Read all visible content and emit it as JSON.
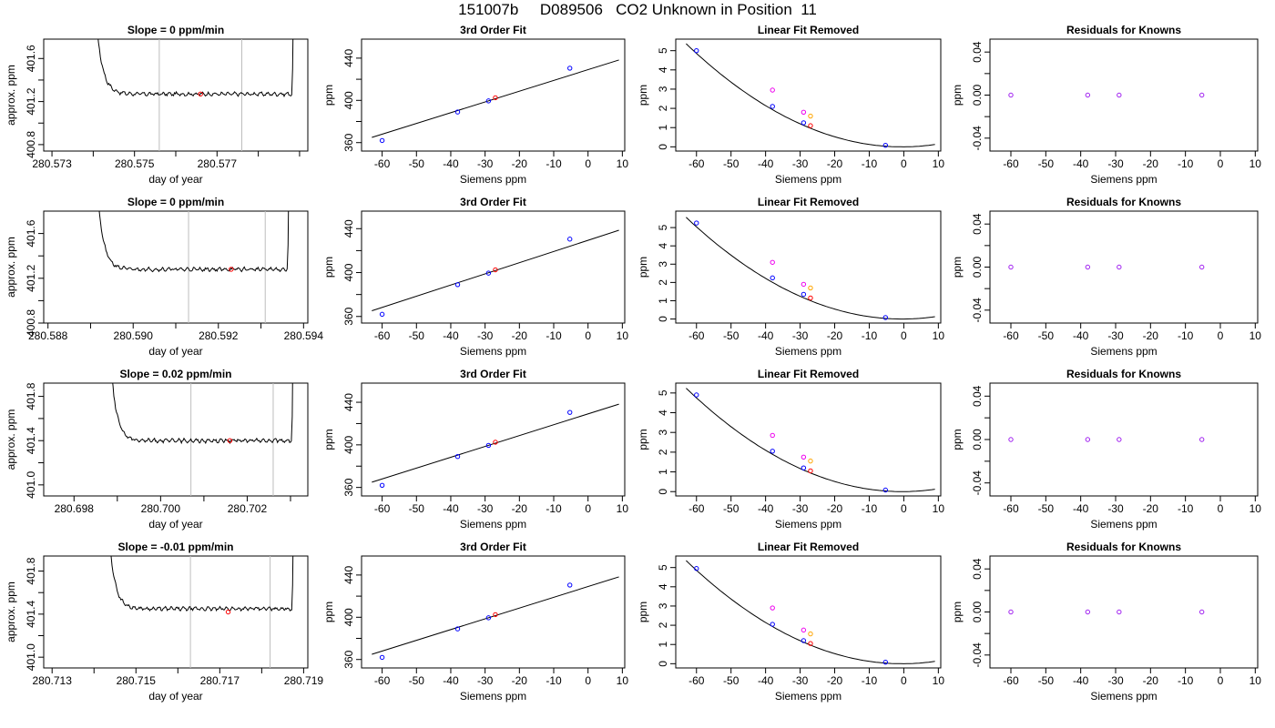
{
  "page_title": "151007b     D089506   CO2 Unknown in Position  11",
  "colors": {
    "trace": "#000000",
    "window_lines": "#bebebe",
    "sample_point": "#ff0000",
    "known_points": "#0000ff",
    "unknown_magenta": "#ee00ee",
    "unknown_orange": "#ffa500",
    "residual_points": "#a020f0",
    "fit_line": "#000000"
  },
  "chart_data": [
    {
      "type": "line",
      "row": 1,
      "title": "Slope =  0  ppm/min",
      "xlabel": "day of year",
      "ylabel": "approx. ppm",
      "xlim": [
        280.5728,
        280.5792
      ],
      "ylim": [
        400.74,
        401.78
      ],
      "xticks": [
        280.573,
        280.574,
        280.575,
        280.576,
        280.577,
        280.578,
        280.579
      ],
      "xtick_labels": [
        "280.573",
        "",
        "280.575",
        "",
        "280.577",
        "",
        ""
      ],
      "yticks": [
        400.8,
        401.0,
        401.2,
        401.4,
        401.6
      ],
      "ytick_labels": [
        "400.8",
        "",
        "401.2",
        "",
        "401.6"
      ],
      "vlines": [
        280.5756,
        280.5776
      ],
      "trace": {
        "t0": 280.5739,
        "t1": 280.5789,
        "base": 401.27,
        "sample": {
          "x": 280.5766,
          "y": 401.27
        }
      }
    },
    {
      "type": "scatter",
      "row": 1,
      "title": "3rd Order Fit",
      "xlabel": "Siemens ppm",
      "ylabel": "ppm",
      "xlim": [
        -66,
        10.7
      ],
      "ylim": [
        352,
        458
      ],
      "xticks": [
        -60,
        -50,
        -40,
        -30,
        -20,
        -10,
        0,
        10
      ],
      "xtick_labels": [
        "-60",
        "-50",
        "-40",
        "-30",
        "-20",
        "-10",
        "0",
        "10"
      ],
      "yticks": [
        360,
        380,
        400,
        420,
        440
      ],
      "ytick_labels": [
        "360",
        "",
        "400",
        "",
        "440"
      ],
      "line": {
        "slope": 1.0187,
        "intercept": 429.08,
        "x": [
          -63,
          9
        ]
      },
      "known_points": [
        {
          "x": -60,
          "y": 362
        },
        {
          "x": -38,
          "y": 389
        },
        {
          "x": -29,
          "y": 399.5
        },
        {
          "x": -5.3,
          "y": 430.5
        }
      ],
      "sample_points": [
        {
          "x": -27,
          "y": 402.5
        }
      ]
    },
    {
      "type": "scatter",
      "row": 1,
      "title": "Linear Fit Removed",
      "xlabel": "Siemens ppm",
      "ylabel": "ppm",
      "xlim": [
        -66,
        10.7
      ],
      "ylim": [
        -0.22,
        5.6
      ],
      "xticks": [
        -60,
        -50,
        -40,
        -30,
        -20,
        -10,
        0,
        10
      ],
      "xtick_labels": [
        "-60",
        "-50",
        "-40",
        "-30",
        "-20",
        "-10",
        "0",
        "10"
      ],
      "yticks": [
        0,
        1,
        2,
        3,
        4,
        5
      ],
      "ytick_labels": [
        "0",
        "1",
        "2",
        "3",
        "4",
        "5"
      ],
      "curve": {
        "a": 0.00137,
        "b": 0.0012,
        "c": 0.0,
        "x": [
          -63,
          9
        ]
      },
      "known_points": [
        {
          "x": -60,
          "y": 5.0
        },
        {
          "x": -38,
          "y": 2.1
        },
        {
          "x": -29,
          "y": 1.25
        },
        {
          "x": -5.3,
          "y": 0.08
        }
      ],
      "sample_points": [
        {
          "x": -27,
          "y": 1.1
        }
      ],
      "magenta_points": [
        {
          "x": -38,
          "y": 2.95
        },
        {
          "x": -29,
          "y": 1.8
        }
      ],
      "orange_points": [
        {
          "x": -27,
          "y": 1.6
        }
      ]
    },
    {
      "type": "scatter",
      "row": 1,
      "title": "Residuals for Knowns",
      "xlabel": "Siemens ppm",
      "ylabel": "ppm",
      "xlim": [
        -66,
        10.7
      ],
      "ylim": [
        -0.052,
        0.052
      ],
      "xticks": [
        -60,
        -50,
        -40,
        -30,
        -20,
        -10,
        0,
        10
      ],
      "xtick_labels": [
        "-60",
        "-50",
        "-40",
        "-30",
        "-20",
        "-10",
        "0",
        "10"
      ],
      "yticks": [
        -0.04,
        -0.02,
        0.0,
        0.02,
        0.04
      ],
      "ytick_labels": [
        "-0.04",
        "",
        "0.00",
        "",
        "0.04"
      ],
      "residual_points": [
        {
          "x": -60,
          "y": 0
        },
        {
          "x": -38,
          "y": 0
        },
        {
          "x": -29,
          "y": 0
        },
        {
          "x": -5.3,
          "y": 0
        }
      ]
    },
    {
      "type": "line",
      "row": 2,
      "title": "Slope =  0  ppm/min",
      "xlabel": "day of year",
      "ylabel": "approx. ppm",
      "xlim": [
        280.5879,
        280.5941
      ],
      "ylim": [
        400.8,
        401.8
      ],
      "xticks": [
        280.588,
        280.589,
        280.59,
        280.591,
        280.592,
        280.593,
        280.594
      ],
      "xtick_labels": [
        "280.588",
        "",
        "280.590",
        "",
        "280.592",
        "",
        "280.594"
      ],
      "yticks": [
        400.8,
        401.0,
        401.2,
        401.4,
        401.6
      ],
      "ytick_labels": [
        "400.8",
        "",
        "401.2",
        "",
        "401.6"
      ],
      "vlines": [
        280.5913,
        280.5931
      ],
      "trace": {
        "t0": 280.589,
        "t1": 280.5937,
        "base": 401.28,
        "sample": {
          "x": 280.5923,
          "y": 401.28
        }
      }
    },
    {
      "type": "scatter",
      "row": 2,
      "title": "3rd Order Fit",
      "xlabel": "Siemens ppm",
      "ylabel": "ppm",
      "xlim": [
        -66,
        10.7
      ],
      "ylim": [
        354,
        456
      ],
      "xticks": [
        -60,
        -50,
        -40,
        -30,
        -20,
        -10,
        0,
        10
      ],
      "xtick_labels": [
        "-60",
        "-50",
        "-40",
        "-30",
        "-20",
        "-10",
        "0",
        "10"
      ],
      "yticks": [
        360,
        380,
        400,
        420,
        440
      ],
      "ytick_labels": [
        "360",
        "",
        "400",
        "",
        "440"
      ],
      "line": {
        "slope": 1.0187,
        "intercept": 429.4,
        "x": [
          -63,
          9
        ]
      },
      "known_points": [
        {
          "x": -60,
          "y": 362
        },
        {
          "x": -38,
          "y": 389
        },
        {
          "x": -29,
          "y": 399.5
        },
        {
          "x": -5.3,
          "y": 430.5
        }
      ],
      "sample_points": [
        {
          "x": -27,
          "y": 402.5
        }
      ]
    },
    {
      "type": "scatter",
      "row": 2,
      "title": "Linear Fit Removed",
      "xlabel": "Siemens ppm",
      "ylabel": "ppm",
      "xlim": [
        -66,
        10.7
      ],
      "ylim": [
        -0.22,
        5.9
      ],
      "xticks": [
        -60,
        -50,
        -40,
        -30,
        -20,
        -10,
        0,
        10
      ],
      "xtick_labels": [
        "-60",
        "-50",
        "-40",
        "-30",
        "-20",
        "-10",
        "0",
        "10"
      ],
      "yticks": [
        0,
        1,
        2,
        3,
        4,
        5
      ],
      "ytick_labels": [
        "0",
        "1",
        "2",
        "3",
        "4",
        "5"
      ],
      "curve": {
        "a": 0.00142,
        "b": 0.0012,
        "c": 0.0,
        "x": [
          -63,
          9
        ]
      },
      "known_points": [
        {
          "x": -60,
          "y": 5.25
        },
        {
          "x": -38,
          "y": 2.25
        },
        {
          "x": -29,
          "y": 1.35
        },
        {
          "x": -5.3,
          "y": 0.08
        }
      ],
      "sample_points": [
        {
          "x": -27,
          "y": 1.15
        }
      ],
      "magenta_points": [
        {
          "x": -38,
          "y": 3.1
        },
        {
          "x": -29,
          "y": 1.9
        }
      ],
      "orange_points": [
        {
          "x": -27,
          "y": 1.7
        }
      ]
    },
    {
      "type": "scatter",
      "row": 2,
      "title": "Residuals for Knowns",
      "xlabel": "Siemens ppm",
      "ylabel": "ppm",
      "xlim": [
        -66,
        10.7
      ],
      "ylim": [
        -0.052,
        0.052
      ],
      "xticks": [
        -60,
        -50,
        -40,
        -30,
        -20,
        -10,
        0,
        10
      ],
      "xtick_labels": [
        "-60",
        "-50",
        "-40",
        "-30",
        "-20",
        "-10",
        "0",
        "10"
      ],
      "yticks": [
        -0.04,
        -0.02,
        0.0,
        0.02,
        0.04
      ],
      "ytick_labels": [
        "-0.04",
        "",
        "0.00",
        "",
        "0.04"
      ],
      "residual_points": [
        {
          "x": -60,
          "y": 0
        },
        {
          "x": -38,
          "y": 0
        },
        {
          "x": -29,
          "y": 0
        },
        {
          "x": -5.3,
          "y": 0
        }
      ]
    },
    {
      "type": "line",
      "row": 3,
      "title": "Slope =  0.02  ppm/min",
      "xlabel": "day of year",
      "ylabel": "approx. ppm",
      "xlim": [
        280.6973,
        280.7034
      ],
      "ylim": [
        400.9,
        401.92
      ],
      "xticks": [
        280.698,
        280.699,
        280.7,
        280.701,
        280.702,
        280.703
      ],
      "xtick_labels": [
        "280.698",
        "",
        "280.700",
        "",
        "280.702",
        ""
      ],
      "yticks": [
        401.0,
        401.2,
        401.4,
        401.6,
        401.8
      ],
      "ytick_labels": [
        "401.0",
        "",
        "401.4",
        "",
        "401.8"
      ],
      "vlines": [
        280.7007,
        280.7026
      ],
      "trace": {
        "t0": 280.6987,
        "t1": 280.7031,
        "base": 401.4,
        "sample": {
          "x": 280.7016,
          "y": 401.4
        }
      }
    },
    {
      "type": "scatter",
      "row": 3,
      "title": "3rd Order Fit",
      "xlabel": "Siemens ppm",
      "ylabel": "ppm",
      "xlim": [
        -66,
        10.7
      ],
      "ylim": [
        352,
        458
      ],
      "xticks": [
        -60,
        -50,
        -40,
        -30,
        -20,
        -10,
        0,
        10
      ],
      "xtick_labels": [
        "-60",
        "-50",
        "-40",
        "-30",
        "-20",
        "-10",
        "0",
        "10"
      ],
      "yticks": [
        360,
        380,
        400,
        420,
        440
      ],
      "ytick_labels": [
        "360",
        "",
        "400",
        "",
        "440"
      ],
      "line": {
        "slope": 1.0187,
        "intercept": 429.08,
        "x": [
          -63,
          9
        ]
      },
      "known_points": [
        {
          "x": -60,
          "y": 362
        },
        {
          "x": -38,
          "y": 389
        },
        {
          "x": -29,
          "y": 399.5
        },
        {
          "x": -5.3,
          "y": 430.5
        }
      ],
      "sample_points": [
        {
          "x": -27,
          "y": 402.5
        }
      ]
    },
    {
      "type": "scatter",
      "row": 3,
      "title": "Linear Fit Removed",
      "xlabel": "Siemens ppm",
      "ylabel": "ppm",
      "xlim": [
        -66,
        10.7
      ],
      "ylim": [
        -0.22,
        5.5
      ],
      "xticks": [
        -60,
        -50,
        -40,
        -30,
        -20,
        -10,
        0,
        10
      ],
      "xtick_labels": [
        "-60",
        "-50",
        "-40",
        "-30",
        "-20",
        "-10",
        "0",
        "10"
      ],
      "yticks": [
        0,
        1,
        2,
        3,
        4,
        5
      ],
      "ytick_labels": [
        "0",
        "1",
        "2",
        "3",
        "4",
        "5"
      ],
      "curve": {
        "a": 0.00134,
        "b": 0.0012,
        "c": 0.0,
        "x": [
          -63,
          9
        ]
      },
      "known_points": [
        {
          "x": -60,
          "y": 4.9
        },
        {
          "x": -38,
          "y": 2.05
        },
        {
          "x": -29,
          "y": 1.2
        },
        {
          "x": -5.3,
          "y": 0.08
        }
      ],
      "sample_points": [
        {
          "x": -27,
          "y": 1.05
        }
      ],
      "magenta_points": [
        {
          "x": -38,
          "y": 2.85
        },
        {
          "x": -29,
          "y": 1.75
        }
      ],
      "orange_points": [
        {
          "x": -27,
          "y": 1.55
        }
      ]
    },
    {
      "type": "scatter",
      "row": 3,
      "title": "Residuals for Knowns",
      "xlabel": "Siemens ppm",
      "ylabel": "ppm",
      "xlim": [
        -66,
        10.7
      ],
      "ylim": [
        -0.052,
        0.052
      ],
      "xticks": [
        -60,
        -50,
        -40,
        -30,
        -20,
        -10,
        0,
        10
      ],
      "xtick_labels": [
        "-60",
        "-50",
        "-40",
        "-30",
        "-20",
        "-10",
        "0",
        "10"
      ],
      "yticks": [
        -0.04,
        -0.02,
        0.0,
        0.02,
        0.04
      ],
      "ytick_labels": [
        "-0.04",
        "",
        "0.00",
        "",
        "0.04"
      ],
      "residual_points": [
        {
          "x": -60,
          "y": 0
        },
        {
          "x": -38,
          "y": 0
        },
        {
          "x": -29,
          "y": 0
        },
        {
          "x": -5.3,
          "y": 0
        }
      ]
    },
    {
      "type": "line",
      "row": 4,
      "title": "Slope =  -0.01  ppm/min",
      "xlabel": "day of year",
      "ylabel": "approx. ppm",
      "xlim": [
        280.7128,
        280.7191
      ],
      "ylim": [
        400.9,
        401.94
      ],
      "xticks": [
        280.713,
        280.714,
        280.715,
        280.716,
        280.717,
        280.718,
        280.719
      ],
      "xtick_labels": [
        "280.713",
        "",
        "280.715",
        "",
        "280.717",
        "",
        "280.719"
      ],
      "yticks": [
        401.0,
        401.2,
        401.4,
        401.6,
        401.8
      ],
      "ytick_labels": [
        "401.0",
        "",
        "401.4",
        "",
        "401.8"
      ],
      "vlines": [
        280.7163,
        280.7182
      ],
      "trace": {
        "t0": 280.7142,
        "t1": 280.7188,
        "base": 401.45,
        "sample": {
          "x": 280.7172,
          "y": 401.42
        }
      }
    },
    {
      "type": "scatter",
      "row": 4,
      "title": "3rd Order Fit",
      "xlabel": "Siemens ppm",
      "ylabel": "ppm",
      "xlim": [
        -66,
        10.7
      ],
      "ylim": [
        352,
        458
      ],
      "xticks": [
        -60,
        -50,
        -40,
        -30,
        -20,
        -10,
        0,
        10
      ],
      "xtick_labels": [
        "-60",
        "-50",
        "-40",
        "-30",
        "-20",
        "-10",
        "0",
        "10"
      ],
      "yticks": [
        360,
        380,
        400,
        420,
        440
      ],
      "ytick_labels": [
        "360",
        "",
        "400",
        "",
        "440"
      ],
      "line": {
        "slope": 1.0187,
        "intercept": 429.08,
        "x": [
          -63,
          9
        ]
      },
      "known_points": [
        {
          "x": -60,
          "y": 362
        },
        {
          "x": -38,
          "y": 389
        },
        {
          "x": -29,
          "y": 399.5
        },
        {
          "x": -5.3,
          "y": 430.5
        }
      ],
      "sample_points": [
        {
          "x": -27,
          "y": 402.5
        }
      ]
    },
    {
      "type": "scatter",
      "row": 4,
      "title": "Linear Fit Removed",
      "xlabel": "Siemens ppm",
      "ylabel": "ppm",
      "xlim": [
        -66,
        10.7
      ],
      "ylim": [
        -0.22,
        5.6
      ],
      "xticks": [
        -60,
        -50,
        -40,
        -30,
        -20,
        -10,
        0,
        10
      ],
      "xtick_labels": [
        "-60",
        "-50",
        "-40",
        "-30",
        "-20",
        "-10",
        "0",
        "10"
      ],
      "yticks": [
        0,
        1,
        2,
        3,
        4,
        5
      ],
      "ytick_labels": [
        "0",
        "1",
        "2",
        "3",
        "4",
        "5"
      ],
      "curve": {
        "a": 0.00137,
        "b": 0.0012,
        "c": 0.0,
        "x": [
          -63,
          9
        ]
      },
      "known_points": [
        {
          "x": -60,
          "y": 4.95
        },
        {
          "x": -38,
          "y": 2.05
        },
        {
          "x": -29,
          "y": 1.2
        },
        {
          "x": -5.3,
          "y": 0.08
        }
      ],
      "sample_points": [
        {
          "x": -27,
          "y": 1.05
        }
      ],
      "magenta_points": [
        {
          "x": -38,
          "y": 2.9
        },
        {
          "x": -29,
          "y": 1.75
        }
      ],
      "orange_points": [
        {
          "x": -27,
          "y": 1.55
        }
      ]
    },
    {
      "type": "scatter",
      "row": 4,
      "title": "Residuals for Knowns",
      "xlabel": "Siemens ppm",
      "ylabel": "ppm",
      "xlim": [
        -66,
        10.7
      ],
      "ylim": [
        -0.052,
        0.052
      ],
      "xticks": [
        -60,
        -50,
        -40,
        -30,
        -20,
        -10,
        0,
        10
      ],
      "xtick_labels": [
        "-60",
        "-50",
        "-40",
        "-30",
        "-20",
        "-10",
        "0",
        "10"
      ],
      "yticks": [
        -0.04,
        -0.02,
        0.0,
        0.02,
        0.04
      ],
      "ytick_labels": [
        "-0.04",
        "",
        "0.00",
        "",
        "0.04"
      ],
      "residual_points": [
        {
          "x": -60,
          "y": 0
        },
        {
          "x": -38,
          "y": 0
        },
        {
          "x": -29,
          "y": 0
        },
        {
          "x": -5.3,
          "y": 0
        }
      ]
    }
  ]
}
